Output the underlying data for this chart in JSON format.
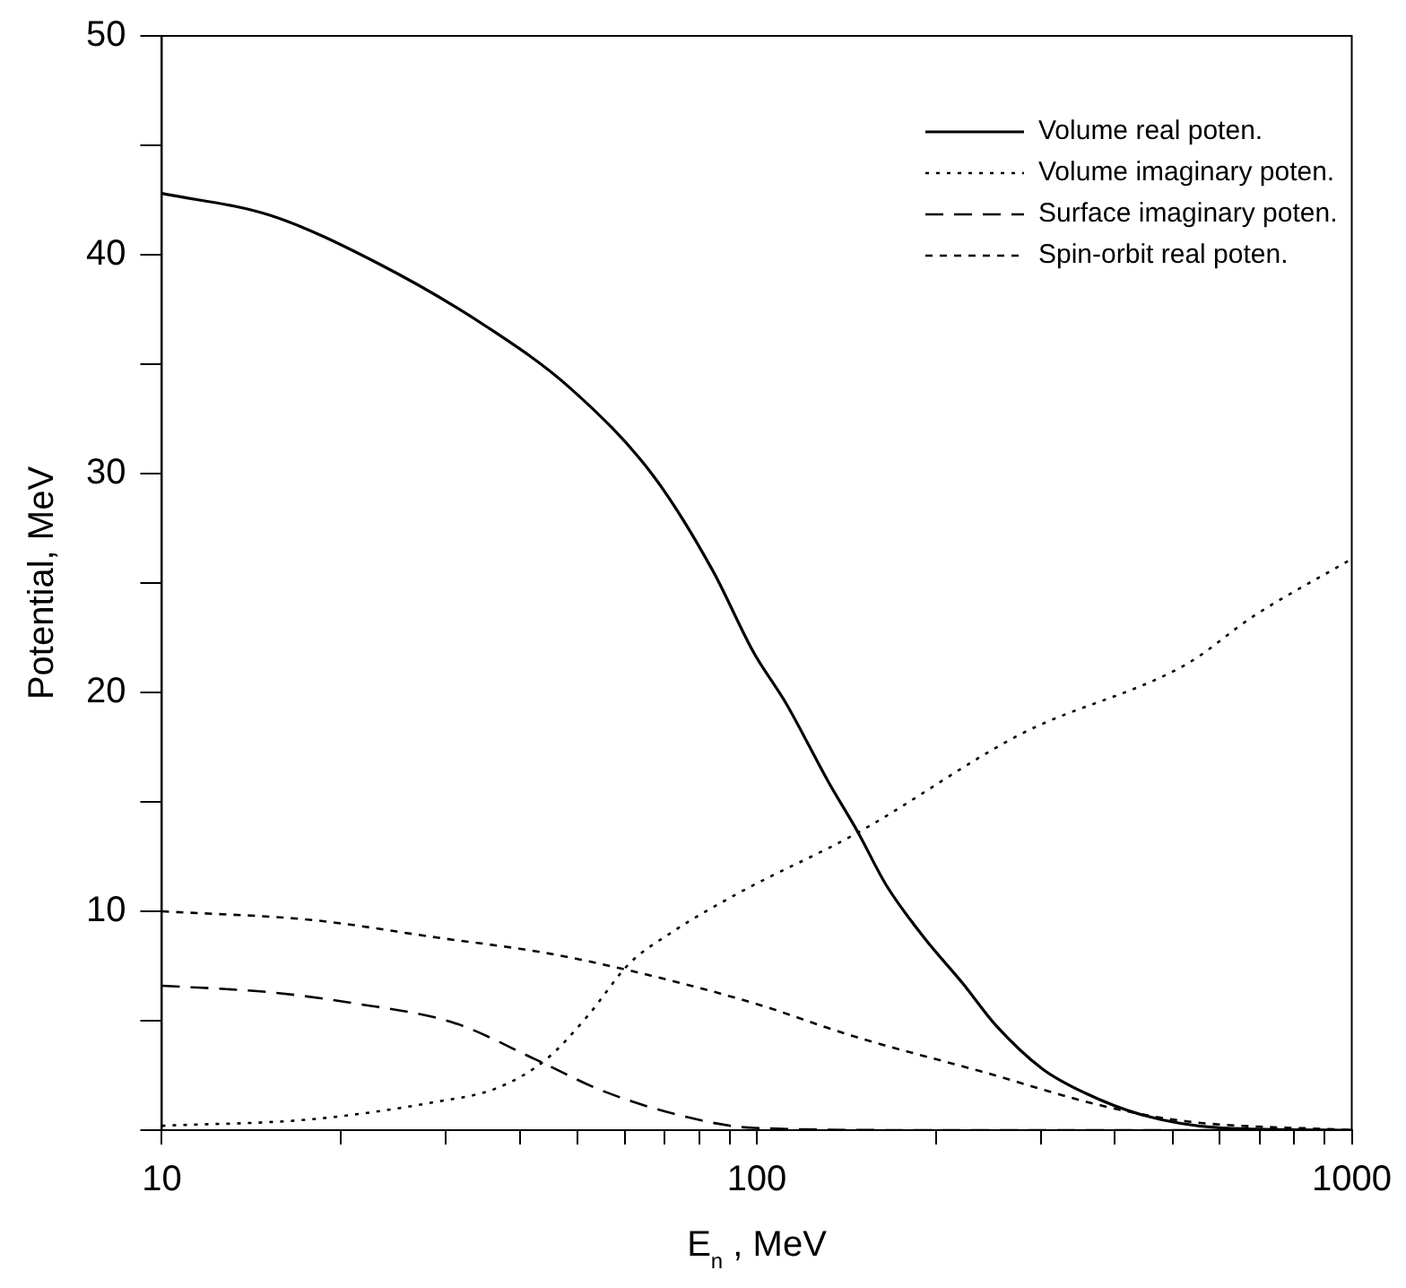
{
  "chart_data": {
    "type": "line",
    "xlabel": "E$_{n}$ , MeV",
    "ylabel": "Potential, MeV",
    "log": "x",
    "xlim": [
      10,
      1000
    ],
    "ylim": [
      0,
      50
    ],
    "xticks": [
      10,
      {
        "value": 20,
        "label": null
      },
      {
        "value": 30,
        "label": null
      },
      {
        "value": 40,
        "label": null
      },
      {
        "value": 50,
        "label": null
      },
      {
        "value": 60,
        "label": null
      },
      {
        "value": 70,
        "label": null
      },
      {
        "value": 80,
        "label": null
      },
      {
        "value": 90,
        "label": null
      },
      100,
      {
        "value": 200,
        "label": null
      },
      {
        "value": 300,
        "label": null
      },
      {
        "value": 400,
        "label": null
      },
      {
        "value": 500,
        "label": null
      },
      {
        "value": 600,
        "label": null
      },
      {
        "value": 700,
        "label": null
      },
      {
        "value": 800,
        "label": null
      },
      {
        "value": 900,
        "label": null
      },
      1000
    ],
    "yticks": [
      {
        "value": 0,
        "label": null
      },
      {
        "value": 5,
        "label": null
      },
      10,
      {
        "value": 15,
        "label": null
      },
      20,
      {
        "value": 25,
        "label": null
      },
      30,
      {
        "value": 35,
        "label": null
      },
      40,
      {
        "value": 45,
        "label": null
      },
      50
    ],
    "grid": false,
    "legend": "top right",
    "marker": "none",
    "series": [
      {
        "name": "Volume real poten.",
        "color": "#000000",
        "line_style": "solid",
        "x": [
          10,
          15.2,
          23.1,
          35.2,
          48.6,
          67,
          84.2,
          98.9,
          112,
          132,
          148,
          165,
          191,
          222,
          252,
          302,
          356,
          444,
          606,
          1000
        ],
        "values": [
          42.8,
          41.8,
          39.6,
          36.7,
          33.9,
          29.9,
          25.6,
          21.8,
          19.5,
          15.9,
          13.6,
          11.2,
          8.8,
          6.7,
          4.8,
          2.8,
          1.7,
          0.7,
          0.1,
          0
        ]
      },
      {
        "name": "Volume imaginary poten.",
        "color": "#000000",
        "line_style": "dotted",
        "x": [
          10,
          17.9,
          29,
          36.4,
          44.1,
          51.9,
          61,
          71.6,
          92.7,
          148,
          278,
          528,
          685,
          1000
        ],
        "values": [
          0.2,
          0.5,
          1.3,
          1.9,
          3.2,
          5.2,
          7.6,
          9.0,
          10.8,
          13.6,
          18.1,
          21.3,
          23.5,
          26.1
        ]
      },
      {
        "name": "Surface imaginary poten.",
        "color": "#000000",
        "line_style": "dashed",
        "x": [
          10,
          15.2,
          21,
          31,
          42.7,
          55,
          76.2,
          98.9,
          200,
          1000
        ],
        "values": [
          6.6,
          6.3,
          5.8,
          4.9,
          3.2,
          1.8,
          0.6,
          0.1,
          0,
          0
        ]
      },
      {
        "name": "Spin-orbit real poten.",
        "color": "#000000",
        "line_style": "dashed",
        "x": [
          10,
          17.9,
          29,
          44.1,
          61,
          98.9,
          145,
          237,
          383,
          528,
          1000
        ],
        "values": [
          10.0,
          9.6,
          8.8,
          8.1,
          7.3,
          5.8,
          4.3,
          2.7,
          1.1,
          0.4,
          0
        ]
      }
    ]
  }
}
